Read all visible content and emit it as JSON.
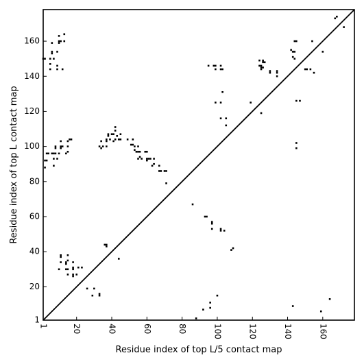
{
  "chart_data": {
    "type": "scatter",
    "title": "",
    "xlabel": "Residue index of top L/5 contact map",
    "ylabel": "Residue index of top L contact map",
    "xlim": [
      1,
      178
    ],
    "ylim": [
      1,
      178
    ],
    "x_ticks": [
      1,
      20,
      40,
      60,
      80,
      100,
      120,
      140,
      160
    ],
    "y_ticks": [
      1,
      20,
      40,
      60,
      80,
      100,
      120,
      140,
      160
    ],
    "tick_rotation_x": -90,
    "diagonal": true,
    "grid": false,
    "marker": "square",
    "marker_color": "#000000",
    "series": [
      {
        "points": [
          [
            1,
            150
          ],
          [
            2,
            150
          ],
          [
            5,
            150
          ],
          [
            5,
            147
          ],
          [
            5,
            144
          ],
          [
            6,
            159
          ],
          [
            6,
            154
          ],
          [
            6,
            153
          ],
          [
            7,
            150
          ],
          [
            9,
            146
          ],
          [
            9,
            144
          ],
          [
            9,
            154
          ],
          [
            10,
            160
          ],
          [
            10,
            159
          ],
          [
            10,
            163
          ],
          [
            11,
            160
          ],
          [
            12,
            144
          ],
          [
            13,
            160
          ],
          [
            13,
            164
          ],
          [
            124,
            149
          ],
          [
            124,
            146
          ],
          [
            125,
            146
          ],
          [
            125,
            145
          ],
          [
            126,
            145
          ],
          [
            126,
            149
          ],
          [
            127,
            148
          ],
          [
            126,
            148
          ],
          [
            125,
            144
          ],
          [
            130,
            143
          ],
          [
            130,
            142
          ],
          [
            134,
            143
          ],
          [
            134,
            142
          ],
          [
            134,
            140
          ],
          [
            142,
            155
          ],
          [
            143,
            154
          ],
          [
            144,
            154
          ],
          [
            143,
            151
          ],
          [
            144,
            150
          ],
          [
            144,
            160
          ],
          [
            145,
            160
          ],
          [
            150,
            144
          ],
          [
            151,
            144
          ],
          [
            153,
            144
          ],
          [
            154,
            160
          ],
          [
            155,
            142
          ],
          [
            160,
            154
          ],
          [
            95,
            146
          ],
          [
            98,
            146
          ],
          [
            99,
            146
          ],
          [
            99,
            144
          ],
          [
            102,
            146
          ],
          [
            102,
            144
          ],
          [
            103,
            144
          ],
          [
            103,
            131
          ],
          [
            99,
            125
          ],
          [
            102,
            125
          ],
          [
            102,
            116
          ],
          [
            105,
            116
          ],
          [
            105,
            112
          ],
          [
            119,
            125
          ],
          [
            125,
            119
          ],
          [
            143,
            9
          ],
          [
            145,
            126
          ],
          [
            147,
            126
          ],
          [
            145,
            102
          ],
          [
            145,
            99
          ],
          [
            167,
            173
          ],
          [
            168,
            174
          ],
          [
            172,
            168
          ],
          [
            2,
            88
          ],
          [
            2,
            92
          ],
          [
            3,
            92
          ],
          [
            3,
            96
          ],
          [
            4,
            96
          ],
          [
            6,
            96
          ],
          [
            7,
            96
          ],
          [
            8,
            96
          ],
          [
            7,
            93
          ],
          [
            7,
            89
          ],
          [
            8,
            99
          ],
          [
            8,
            100
          ],
          [
            9,
            93
          ],
          [
            10,
            96
          ],
          [
            11,
            99
          ],
          [
            11,
            100
          ],
          [
            12,
            100
          ],
          [
            11,
            103
          ],
          [
            14,
            96
          ],
          [
            15,
            97
          ],
          [
            15,
            100
          ],
          [
            15,
            103
          ],
          [
            16,
            104
          ],
          [
            17,
            104
          ],
          [
            33,
            100
          ],
          [
            34,
            99
          ],
          [
            34,
            103
          ],
          [
            35,
            100
          ],
          [
            37,
            100
          ],
          [
            37,
            103
          ],
          [
            37,
            104
          ],
          [
            38,
            107
          ],
          [
            38,
            106
          ],
          [
            39,
            104
          ],
          [
            40,
            107
          ],
          [
            41,
            107
          ],
          [
            41,
            103
          ],
          [
            42,
            104
          ],
          [
            42,
            111
          ],
          [
            42,
            109
          ],
          [
            43,
            106
          ],
          [
            44,
            104
          ],
          [
            45,
            104
          ],
          [
            45,
            107
          ],
          [
            49,
            104
          ],
          [
            51,
            101
          ],
          [
            52,
            104
          ],
          [
            52,
            101
          ],
          [
            53,
            100
          ],
          [
            53,
            98
          ],
          [
            54,
            97
          ],
          [
            55,
            100
          ],
          [
            55,
            97
          ],
          [
            55,
            93
          ],
          [
            56,
            97
          ],
          [
            56,
            94
          ],
          [
            57,
            93
          ],
          [
            59,
            97
          ],
          [
            60,
            97
          ],
          [
            60,
            93
          ],
          [
            60,
            92
          ],
          [
            61,
            93
          ],
          [
            62,
            93
          ],
          [
            63,
            89
          ],
          [
            64,
            93
          ],
          [
            64,
            90
          ],
          [
            67,
            89
          ],
          [
            67,
            86
          ],
          [
            68,
            86
          ],
          [
            70,
            86
          ],
          [
            71,
            86
          ],
          [
            71,
            79
          ],
          [
            11,
            38
          ],
          [
            11,
            37
          ],
          [
            11,
            34
          ],
          [
            10,
            30
          ],
          [
            14,
            34
          ],
          [
            14,
            33
          ],
          [
            15,
            35
          ],
          [
            15,
            38
          ],
          [
            14,
            30
          ],
          [
            15,
            30
          ],
          [
            15,
            27
          ],
          [
            18,
            34
          ],
          [
            18,
            31
          ],
          [
            18,
            30
          ],
          [
            18,
            27
          ],
          [
            18,
            26
          ],
          [
            20,
            27
          ],
          [
            21,
            31
          ],
          [
            23,
            31
          ],
          [
            26,
            19
          ],
          [
            29,
            15
          ],
          [
            30,
            19
          ],
          [
            33,
            16
          ],
          [
            33,
            15
          ],
          [
            36,
            44
          ],
          [
            37,
            43
          ],
          [
            37,
            44
          ],
          [
            44,
            36
          ],
          [
            86,
            67
          ],
          [
            93,
            60
          ],
          [
            94,
            60
          ],
          [
            97,
            57
          ],
          [
            97,
            56
          ],
          [
            97,
            53
          ],
          [
            102,
            53
          ],
          [
            102,
            52
          ],
          [
            104,
            52
          ],
          [
            108,
            41
          ],
          [
            109,
            42
          ],
          [
            88,
            2
          ],
          [
            92,
            7
          ],
          [
            96,
            8
          ],
          [
            96,
            11
          ],
          [
            100,
            15
          ],
          [
            159,
            6
          ],
          [
            164,
            13
          ]
        ]
      }
    ]
  }
}
